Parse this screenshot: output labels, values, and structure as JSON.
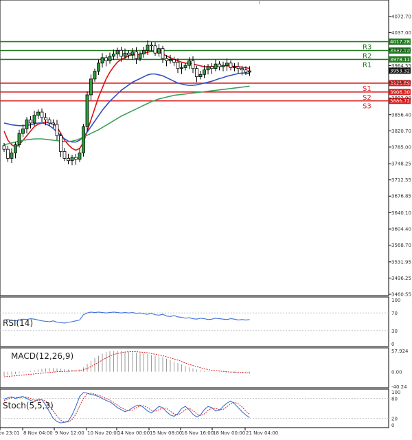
{
  "chart_data": {
    "type": "candlestick",
    "instrument": "US500",
    "price_axis": {
      "ticks": [
        "4072.70",
        "4037.00",
        "3999.85",
        "3964.55",
        "3928.20",
        "3892.90",
        "3856.40",
        "3820.70",
        "3785.00",
        "3748.25",
        "3712.55",
        "3676.85",
        "3640.10",
        "3604.40",
        "3568.70",
        "3531.95",
        "3496.25",
        "3460.55"
      ],
      "ylim": [
        3460.55,
        4090
      ]
    },
    "time_axis": {
      "labels": [
        "7 Nov 23:01",
        "8 Nov 04:00",
        "9 Nov 12:00",
        "10 Nov 20:00",
        "14 Nov 00:00",
        "15 Nov 08:00",
        "16 Nov 16:00",
        "18 Nov 00:00",
        "21 Nov 04:00"
      ]
    },
    "current_price": "3953.32",
    "current_price_value": 3953.32,
    "levels": [
      {
        "name": "R3",
        "value": 4017.28,
        "label": "4017.28",
        "color": "#1f7a1f"
      },
      {
        "name": "R2",
        "value": 3997.7,
        "label": "3997.70",
        "color": "#1f7a1f"
      },
      {
        "name": "R1",
        "value": 3978.11,
        "label": "3978.11",
        "color": "#1f7a1f"
      },
      {
        "name": "S1",
        "value": 3925.89,
        "label": "3925.89",
        "color": "#d62020"
      },
      {
        "name": "S2",
        "value": 3906.3,
        "label": "3906.30",
        "color": "#d62020"
      },
      {
        "name": "S3",
        "value": 3886.72,
        "label": "3886.72",
        "color": "#d62020"
      }
    ],
    "closes": [
      3780,
      3760,
      3772,
      3790,
      3815,
      3825,
      3845,
      3838,
      3855,
      3862,
      3850,
      3845,
      3838,
      3835,
      3810,
      3775,
      3760,
      3755,
      3762,
      3758,
      3772,
      3830,
      3900,
      3935,
      3952,
      3970,
      3982,
      3975,
      3985,
      3990,
      3998,
      3985,
      3992,
      3988,
      3995,
      3980,
      3990,
      3998,
      4010,
      4008,
      3992,
      4002,
      3980,
      3975,
      3978,
      3972,
      3958,
      3960,
      3965,
      3975,
      3958,
      3940,
      3945,
      3955,
      3962,
      3958,
      3968,
      3962,
      3965,
      3970,
      3960,
      3962,
      3958,
      3955,
      3950,
      3953
    ],
    "series": [
      {
        "name": "MA fast",
        "color": "#e01010",
        "values": [
          3820,
          3800,
          3790,
          3785,
          3790,
          3800,
          3810,
          3820,
          3830,
          3835,
          3838,
          3840,
          3838,
          3836,
          3830,
          3815,
          3800,
          3790,
          3782,
          3778,
          3782,
          3795,
          3820,
          3845,
          3870,
          3895,
          3915,
          3935,
          3950,
          3962,
          3972,
          3978,
          3982,
          3986,
          3988,
          3988,
          3990,
          3992,
          3994,
          3996,
          3995,
          3994,
          3990,
          3986,
          3982,
          3978,
          3975,
          3972,
          3970,
          3970,
          3968,
          3966,
          3964,
          3962,
          3962,
          3962,
          3963,
          3963,
          3964,
          3964,
          3963,
          3963,
          3962,
          3961,
          3960,
          3958
        ]
      },
      {
        "name": "MA medium",
        "color": "#3050c0",
        "values": [
          3838,
          3836,
          3834,
          3833,
          3832,
          3832,
          3833,
          3834,
          3836,
          3838,
          3838,
          3836,
          3832,
          3826,
          3818,
          3810,
          3803,
          3798,
          3796,
          3796,
          3800,
          3808,
          3818,
          3830,
          3842,
          3854,
          3866,
          3876,
          3886,
          3894,
          3902,
          3910,
          3916,
          3922,
          3928,
          3932,
          3936,
          3940,
          3944,
          3946,
          3946,
          3944,
          3942,
          3938,
          3934,
          3930,
          3926,
          3924,
          3922,
          3921,
          3921,
          3922,
          3924,
          3926,
          3928,
          3930,
          3933,
          3936,
          3938,
          3941,
          3943,
          3945,
          3947,
          3948,
          3948,
          3947
        ]
      },
      {
        "name": "MA slow",
        "color": "#3aa05a",
        "values": [
          3790,
          3792,
          3794,
          3796,
          3798,
          3800,
          3801,
          3802,
          3803,
          3803,
          3803,
          3802,
          3801,
          3800,
          3799,
          3798,
          3797,
          3797,
          3798,
          3800,
          3803,
          3807,
          3811,
          3815,
          3819,
          3823,
          3828,
          3833,
          3838,
          3843,
          3848,
          3853,
          3857,
          3861,
          3865,
          3869,
          3873,
          3877,
          3881,
          3885,
          3888,
          3891,
          3893,
          3895,
          3897,
          3899,
          3900,
          3901,
          3902,
          3903,
          3904,
          3905,
          3906,
          3907,
          3908,
          3909,
          3910,
          3911,
          3912,
          3913,
          3914,
          3915,
          3916,
          3917,
          3918,
          3919
        ]
      }
    ],
    "indicators": [
      {
        "name": "RSI(14)",
        "label": "RSI(14)",
        "scale_labels": [
          "100",
          "70",
          "30",
          "0"
        ],
        "levels": [
          70,
          30
        ],
        "color": "#3a6fd8",
        "values": [
          54,
          55,
          53,
          52,
          54,
          56,
          55,
          57,
          56,
          54,
          52,
          51,
          50,
          52,
          49,
          48,
          47,
          49,
          50,
          52,
          54,
          66,
          70,
          72,
          71,
          72,
          71,
          70,
          71,
          72,
          71,
          70,
          71,
          70,
          71,
          69,
          70,
          68,
          67,
          69,
          66,
          65,
          67,
          63,
          62,
          64,
          61,
          60,
          58,
          59,
          57,
          56,
          58,
          57,
          55,
          56,
          58,
          57,
          56,
          55,
          57,
          56,
          54,
          55,
          54,
          55
        ]
      },
      {
        "name": "MACD(12,26,9)",
        "label": "MACD(12,26,9)",
        "scale_labels": [
          "57.924",
          "0.00",
          "-40.24"
        ],
        "ylim": [
          -40.24,
          57.924
        ],
        "color": "#d62020",
        "histogram": [
          -12,
          -10,
          -8,
          -6,
          -4,
          -2,
          0,
          2,
          4,
          6,
          8,
          9,
          10,
          10,
          9,
          8,
          7,
          6,
          5,
          5,
          6,
          12,
          22,
          30,
          38,
          44,
          50,
          54,
          56,
          57,
          57,
          56,
          55,
          54,
          53,
          52,
          51,
          50,
          48,
          46,
          44,
          42,
          40,
          36,
          32,
          28,
          24,
          20,
          16,
          12,
          9,
          6,
          4,
          2,
          1,
          0,
          0,
          -1,
          -1,
          -2,
          -2,
          -3,
          -3,
          -4,
          -4,
          -5
        ],
        "signal": [
          -14,
          -13,
          -12,
          -11,
          -10,
          -9,
          -8,
          -7,
          -6,
          -5,
          -4,
          -3,
          -2,
          -1,
          0,
          0,
          1,
          1,
          2,
          2,
          3,
          5,
          9,
          14,
          20,
          26,
          32,
          38,
          43,
          47,
          50,
          52,
          54,
          55,
          55,
          55,
          54,
          53,
          52,
          50,
          48,
          46,
          44,
          41,
          38,
          35,
          32,
          28,
          24,
          20,
          17,
          14,
          11,
          8,
          6,
          4,
          3,
          2,
          1,
          0,
          -1,
          -1,
          -2,
          -2,
          -3,
          -3
        ]
      },
      {
        "name": "Stoch(5,5,3)",
        "label": "Stoch(5,5,3)",
        "scale_labels": [
          "100",
          "80",
          "20",
          "0"
        ],
        "levels": [
          80,
          20
        ],
        "k_color": "#3a6fd8",
        "d_color": "#d62020",
        "k": [
          78,
          82,
          85,
          80,
          84,
          86,
          80,
          74,
          70,
          78,
          76,
          60,
          40,
          20,
          10,
          6,
          8,
          12,
          30,
          56,
          86,
          98,
          96,
          92,
          90,
          86,
          80,
          74,
          70,
          62,
          52,
          46,
          40,
          44,
          52,
          58,
          60,
          52,
          42,
          36,
          46,
          56,
          52,
          40,
          30,
          26,
          34,
          50,
          56,
          46,
          32,
          24,
          30,
          46,
          56,
          52,
          42,
          44,
          56,
          66,
          72,
          64,
          52,
          40,
          30,
          22
        ],
        "d": [
          74,
          78,
          82,
          83,
          82,
          84,
          84,
          80,
          75,
          74,
          76,
          72,
          60,
          42,
          26,
          14,
          8,
          9,
          16,
          32,
          58,
          80,
          94,
          96,
          93,
          90,
          85,
          80,
          75,
          68,
          60,
          52,
          46,
          43,
          45,
          52,
          57,
          58,
          52,
          44,
          41,
          46,
          51,
          50,
          42,
          33,
          30,
          37,
          46,
          50,
          44,
          34,
          28,
          33,
          44,
          51,
          50,
          46,
          47,
          55,
          64,
          68,
          64,
          54,
          42,
          32
        ]
      }
    ]
  }
}
